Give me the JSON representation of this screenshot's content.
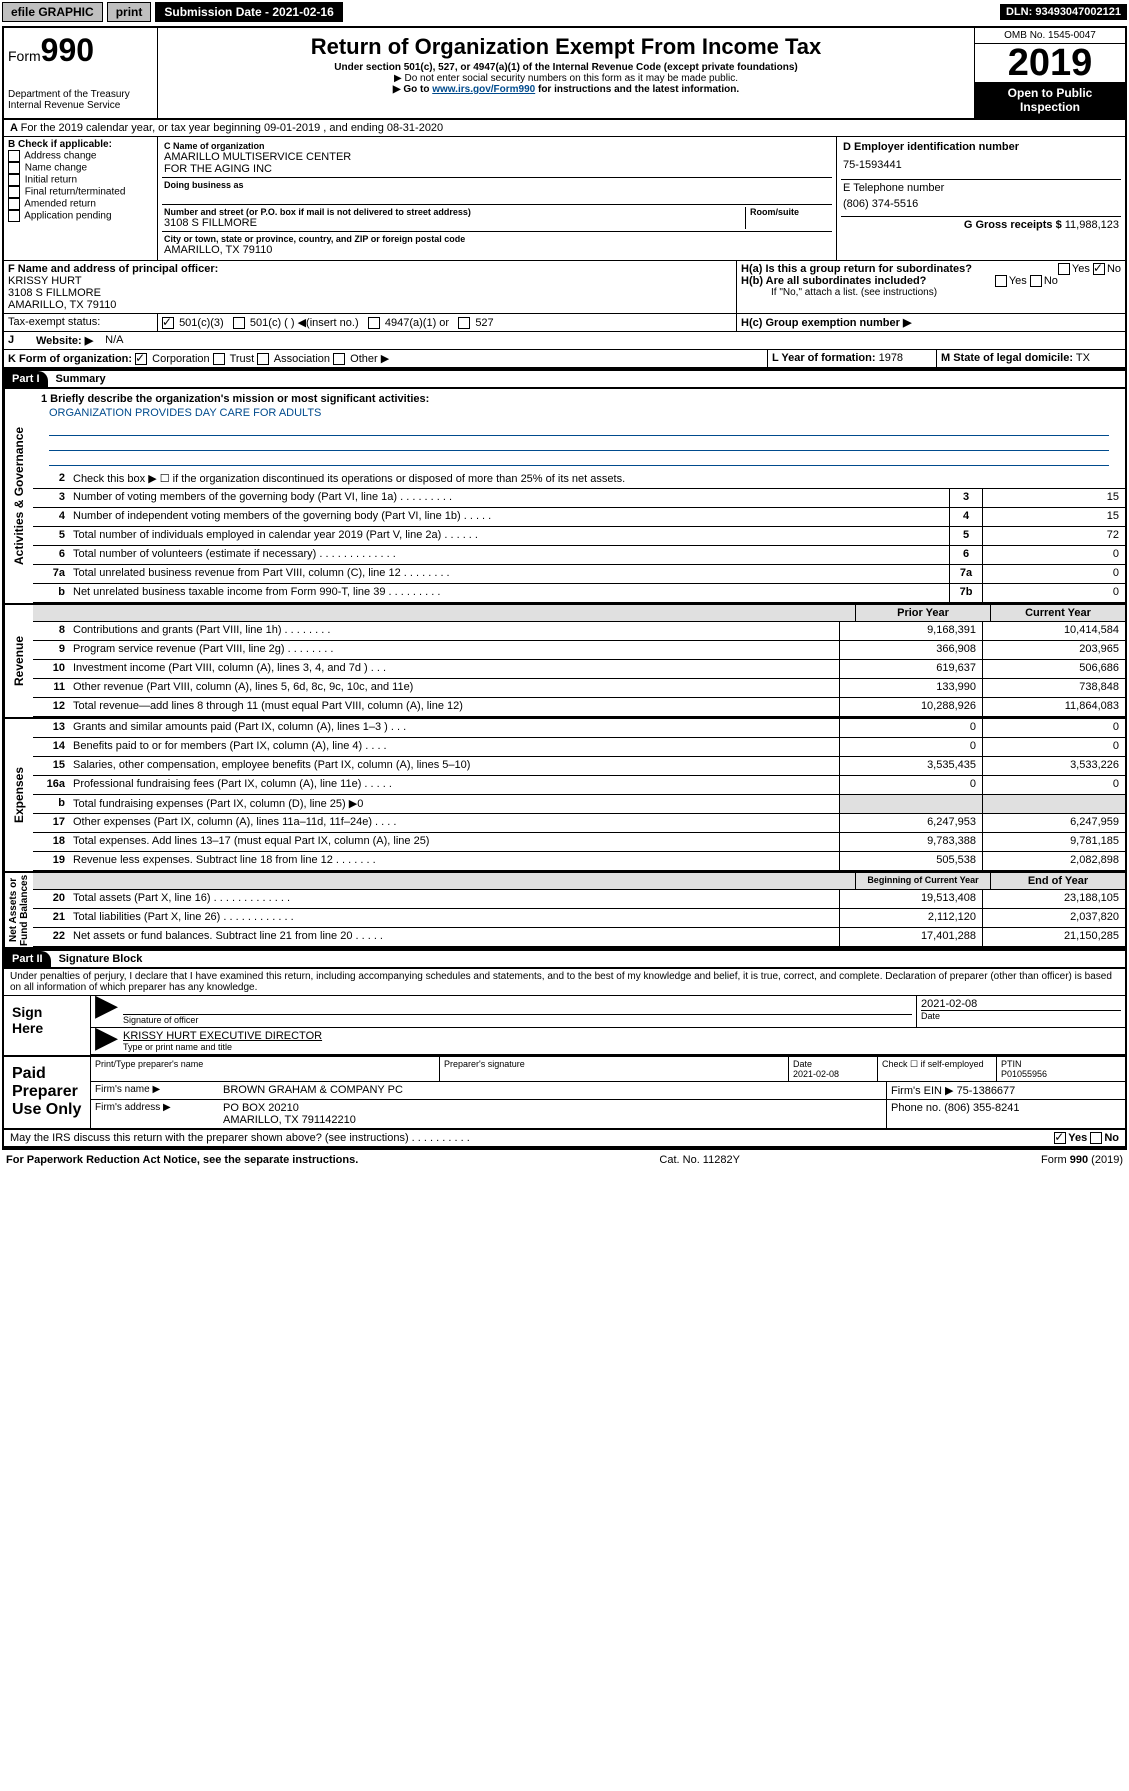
{
  "topbar": {
    "efile": "efile GRAPHIC",
    "print": "print",
    "submission_label": "Submission Date - 2021-02-16",
    "dln": "DLN: 93493047002121"
  },
  "header": {
    "form_prefix": "Form",
    "form_number": "990",
    "dept": "Department of the Treasury\nInternal Revenue Service",
    "title": "Return of Organization Exempt From Income Tax",
    "subtitle": "Under section 501(c), 527, or 4947(a)(1) of the Internal Revenue Code (except private foundations)",
    "note1": "▶ Do not enter social security numbers on this form as it may be made public.",
    "note2_pre": "▶ Go to ",
    "note2_link": "www.irs.gov/Form990",
    "note2_post": " for instructions and the latest information.",
    "omb": "OMB No. 1545-0047",
    "year": "2019",
    "open": "Open to Public\nInspection"
  },
  "period": "For the 2019 calendar year, or tax year beginning 09-01-2019    , and ending 08-31-2020",
  "boxB": {
    "label": "B Check if applicable:",
    "items": [
      "Address change",
      "Name change",
      "Initial return",
      "Final return/terminated",
      "Amended return",
      "Application pending"
    ]
  },
  "boxC": {
    "name_label": "C Name of organization",
    "name": "AMARILLO MULTISERVICE CENTER\nFOR THE AGING INC",
    "dba_label": "Doing business as",
    "addr_label": "Number and street (or P.O. box if mail is not delivered to street address)",
    "room_label": "Room/suite",
    "addr": "3108 S FILLMORE",
    "city_label": "City or town, state or province, country, and ZIP or foreign postal code",
    "city": "AMARILLO, TX  79110"
  },
  "boxD": {
    "label": "D Employer identification number",
    "value": "75-1593441"
  },
  "boxE": {
    "label": "E Telephone number",
    "value": "(806) 374-5516"
  },
  "boxG": {
    "label": "G Gross receipts $",
    "value": "11,988,123"
  },
  "boxF": {
    "label": "F  Name and address of principal officer:",
    "name": "KRISSY HURT",
    "addr": "3108 S FILLMORE\nAMARILLO, TX  79110"
  },
  "boxH": {
    "a": "H(a)  Is this a group return for subordinates?",
    "b": "H(b)  Are all subordinates included?",
    "note": "If \"No,\" attach a list. (see instructions)",
    "c": "H(c)  Group exemption number ▶"
  },
  "taxexempt": {
    "label": "Tax-exempt status:",
    "opts": [
      "501(c)(3)",
      "501(c) (  ) ◀(insert no.)",
      "4947(a)(1) or",
      "527"
    ]
  },
  "boxJ": {
    "label": "J",
    "text": "Website: ▶",
    "value": "N/A"
  },
  "boxK": {
    "label": "K Form of organization:",
    "opts": [
      "Corporation",
      "Trust",
      "Association",
      "Other ▶"
    ]
  },
  "boxL": {
    "label": "L Year of formation:",
    "value": "1978"
  },
  "boxM": {
    "label": "M State of legal domicile:",
    "value": "TX"
  },
  "part1": {
    "label": "Part I",
    "title": "Summary"
  },
  "mission_label": "1  Briefly describe the organization's mission or most significant activities:",
  "mission": "ORGANIZATION PROVIDES DAY CARE FOR ADULTS",
  "governance_label": "Activities & Governance",
  "gov_lines": [
    {
      "n": "2",
      "d": "Check this box ▶ ☐ if the organization discontinued its operations or disposed of more than 25% of its net assets."
    },
    {
      "n": "3",
      "d": "Number of voting members of the governing body (Part VI, line 1a)  .   .   .   .   .   .   .   .   .",
      "b": "3",
      "v": "15"
    },
    {
      "n": "4",
      "d": "Number of independent voting members of the governing body (Part VI, line 1b)  .   .   .   .   .",
      "b": "4",
      "v": "15"
    },
    {
      "n": "5",
      "d": "Total number of individuals employed in calendar year 2019 (Part V, line 2a)  .   .   .   .   .   .",
      "b": "5",
      "v": "72"
    },
    {
      "n": "6",
      "d": "Total number of volunteers (estimate if necessary)  .   .   .   .   .   .   .   .   .   .   .   .   .",
      "b": "6",
      "v": "0"
    },
    {
      "n": "7a",
      "d": "Total unrelated business revenue from Part VIII, column (C), line 12  .   .   .   .   .   .   .   .",
      "b": "7a",
      "v": "0"
    },
    {
      "n": "b",
      "d": "Net unrelated business taxable income from Form 990-T, line 39  .   .   .   .   .   .   .   .   .",
      "b": "7b",
      "v": "0"
    }
  ],
  "rev_header": {
    "prior": "Prior Year",
    "current": "Current Year"
  },
  "revenue_label": "Revenue",
  "rev_lines": [
    {
      "n": "8",
      "d": "Contributions and grants (Part VIII, line 1h)  .   .   .   .   .   .   .   .",
      "p": "9,168,391",
      "c": "10,414,584"
    },
    {
      "n": "9",
      "d": "Program service revenue (Part VIII, line 2g)  .   .   .   .   .   .   .   .",
      "p": "366,908",
      "c": "203,965"
    },
    {
      "n": "10",
      "d": "Investment income (Part VIII, column (A), lines 3, 4, and 7d )  .   .   .",
      "p": "619,637",
      "c": "506,686"
    },
    {
      "n": "11",
      "d": "Other revenue (Part VIII, column (A), lines 5, 6d, 8c, 9c, 10c, and 11e)",
      "p": "133,990",
      "c": "738,848"
    },
    {
      "n": "12",
      "d": "Total revenue—add lines 8 through 11 (must equal Part VIII, column (A), line 12)",
      "p": "10,288,926",
      "c": "11,864,083"
    }
  ],
  "expenses_label": "Expenses",
  "exp_lines": [
    {
      "n": "13",
      "d": "Grants and similar amounts paid (Part IX, column (A), lines 1–3 )  .   .   .",
      "p": "0",
      "c": "0"
    },
    {
      "n": "14",
      "d": "Benefits paid to or for members (Part IX, column (A), line 4)  .   .   .   .",
      "p": "0",
      "c": "0"
    },
    {
      "n": "15",
      "d": "Salaries, other compensation, employee benefits (Part IX, column (A), lines 5–10)",
      "p": "3,535,435",
      "c": "3,533,226"
    },
    {
      "n": "16a",
      "d": "Professional fundraising fees (Part IX, column (A), line 11e)  .   .   .   .   .",
      "p": "0",
      "c": "0"
    },
    {
      "n": "b",
      "d": "Total fundraising expenses (Part IX, column (D), line 25) ▶0",
      "p": "",
      "c": "",
      "shade": true
    },
    {
      "n": "17",
      "d": "Other expenses (Part IX, column (A), lines 11a–11d, 11f–24e)  .   .   .   .",
      "p": "6,247,953",
      "c": "6,247,959"
    },
    {
      "n": "18",
      "d": "Total expenses. Add lines 13–17 (must equal Part IX, column (A), line 25)",
      "p": "9,783,388",
      "c": "9,781,185"
    },
    {
      "n": "19",
      "d": "Revenue less expenses. Subtract line 18 from line 12  .   .   .   .   .   .   .",
      "p": "505,538",
      "c": "2,082,898"
    }
  ],
  "net_header": {
    "prior": "Beginning of Current Year",
    "current": "End of Year"
  },
  "netassets_label": "Net Assets or\nFund Balances",
  "net_lines": [
    {
      "n": "20",
      "d": "Total assets (Part X, line 16)  .   .   .   .   .   .   .   .   .   .   .   .   .",
      "p": "19,513,408",
      "c": "23,188,105"
    },
    {
      "n": "21",
      "d": "Total liabilities (Part X, line 26)  .   .   .   .   .   .   .   .   .   .   .   .",
      "p": "2,112,120",
      "c": "2,037,820"
    },
    {
      "n": "22",
      "d": "Net assets or fund balances. Subtract line 21 from line 20  .   .   .   .   .",
      "p": "17,401,288",
      "c": "21,150,285"
    }
  ],
  "part2": {
    "label": "Part II",
    "title": "Signature Block"
  },
  "perjury": "Under penalties of perjury, I declare that I have examined this return, including accompanying schedules and statements, and to the best of my knowledge and belief, it is true, correct, and complete. Declaration of preparer (other than officer) is based on all information of which preparer has any knowledge.",
  "sign": {
    "here": "Sign\nHere",
    "sig_label": "Signature of officer",
    "date": "2021-02-08",
    "date_label": "Date",
    "name": "KRISSY HURT  EXECUTIVE DIRECTOR",
    "name_label": "Type or print name and title"
  },
  "paid": {
    "label": "Paid\nPreparer\nUse Only",
    "prep_name_label": "Print/Type preparer's name",
    "prep_sig_label": "Preparer's signature",
    "prep_date_label": "Date",
    "prep_date": "2021-02-08",
    "check_label": "Check ☐ if self-employed",
    "ptin_label": "PTIN",
    "ptin": "P01055956",
    "firm_name_label": "Firm's name    ▶",
    "firm_name": "BROWN GRAHAM & COMPANY PC",
    "firm_ein_label": "Firm's EIN ▶",
    "firm_ein": "75-1386677",
    "firm_addr_label": "Firm's address ▶",
    "firm_addr": "PO BOX 20210\nAMARILLO, TX  791142210",
    "phone_label": "Phone no.",
    "phone": "(806) 355-8241"
  },
  "discuss": "May the IRS discuss this return with the preparer shown above? (see instructions)   .   .   .   .   .   .   .   .   .   .",
  "footer": {
    "left": "For Paperwork Reduction Act Notice, see the separate instructions.",
    "mid": "Cat. No. 11282Y",
    "right": "Form 990 (2019)"
  }
}
